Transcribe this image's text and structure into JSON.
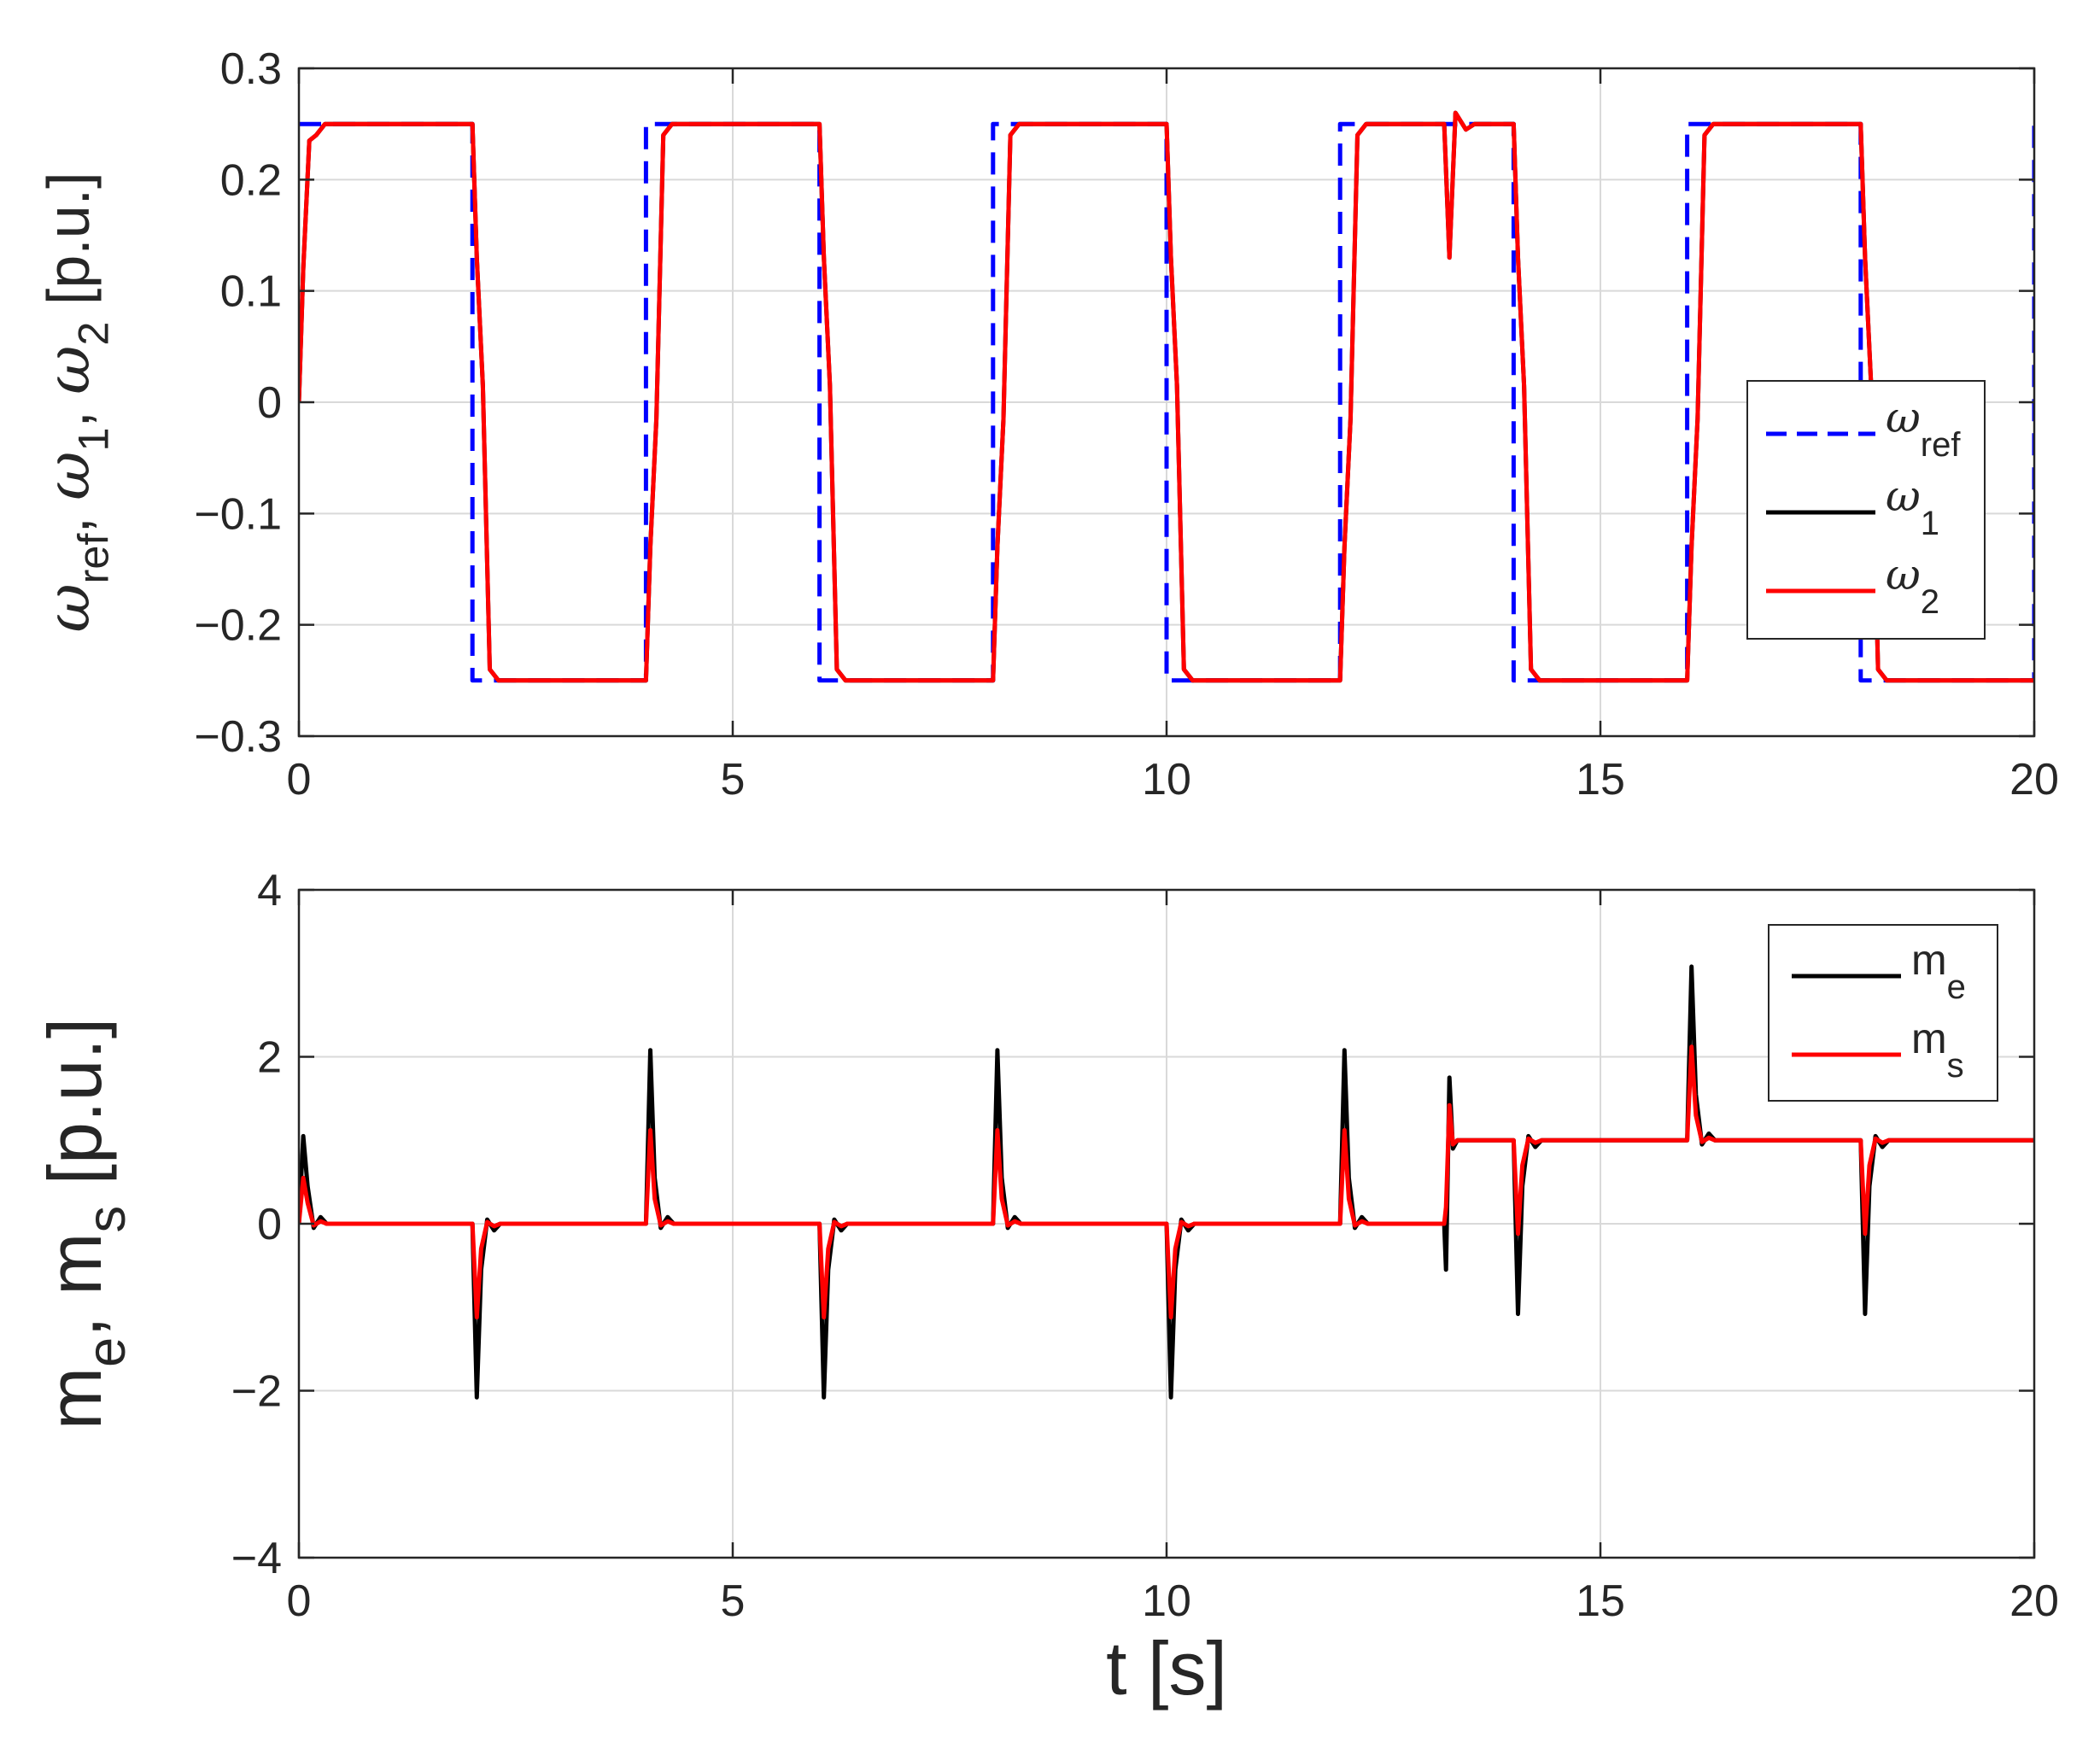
{
  "chart_data": [
    {
      "type": "line",
      "title": "",
      "xlabel": "",
      "ylabel": {
        "parts": [
          {
            "text": "ω",
            "sub": "ref"
          },
          {
            "text": ", "
          },
          {
            "text": "ω",
            "sub": "1"
          },
          {
            "text": ", "
          },
          {
            "text": "ω",
            "sub": "2"
          },
          {
            "text": " [p.u.]"
          }
        ]
      },
      "xlim": [
        0,
        20
      ],
      "ylim": [
        -0.3,
        0.3
      ],
      "xticks": [
        0,
        5,
        10,
        15,
        20
      ],
      "xtick_labels": [
        "0",
        "5",
        "10",
        "15",
        "20"
      ],
      "yticks": [
        -0.3,
        -0.2,
        -0.1,
        0,
        0.1,
        0.2,
        0.3
      ],
      "ytick_labels": [
        "−0.3",
        "−0.2",
        "−0.1",
        "0",
        "0.1",
        "0.2",
        "0.3"
      ],
      "grid": true,
      "legend_position": "right",
      "legend": [
        {
          "name": "ω",
          "sub": "ref",
          "color": "#0000ff",
          "style": "dashed"
        },
        {
          "name": "ω",
          "sub": "1",
          "color": "#000000",
          "style": "solid"
        },
        {
          "name": "ω",
          "sub": "2",
          "color": "#ff0000",
          "style": "solid"
        }
      ],
      "series": [
        {
          "name": "omega_ref",
          "color": "#0000ff",
          "style": "dashed",
          "x": [
            0,
            0.0,
            2.0,
            2.0,
            4.0,
            4.0,
            6.0,
            6.0,
            8.0,
            8.0,
            10.0,
            10.0,
            12.0,
            12.0,
            14.0,
            14.0,
            16.0,
            16.0,
            18.0,
            18.0,
            20.0,
            20.0
          ],
          "y": [
            0.25,
            0.25,
            0.25,
            -0.25,
            -0.25,
            0.25,
            0.25,
            -0.25,
            -0.25,
            0.25,
            0.25,
            -0.25,
            -0.25,
            0.25,
            0.25,
            -0.25,
            -0.25,
            0.25,
            0.25,
            -0.25,
            -0.25,
            0.25
          ]
        },
        {
          "name": "omega_1",
          "color": "#000000",
          "style": "solid",
          "x": [
            0,
            0.05,
            0.12,
            0.2,
            0.3,
            2.0,
            2.05,
            2.12,
            2.2,
            2.3,
            4.0,
            4.05,
            4.12,
            4.2,
            4.3,
            6.0,
            6.05,
            6.12,
            6.2,
            6.3,
            8.0,
            8.05,
            8.12,
            8.2,
            8.3,
            10.0,
            10.05,
            10.12,
            10.2,
            10.3,
            12.0,
            12.05,
            12.12,
            12.2,
            12.3,
            13.2,
            13.26,
            13.33,
            13.45,
            13.55,
            13.7,
            14.0,
            14.05,
            14.12,
            14.2,
            14.3,
            16.0,
            16.05,
            16.12,
            16.2,
            16.3,
            18.0,
            18.05,
            18.12,
            18.2,
            18.3,
            20.0
          ],
          "y": [
            0.0,
            0.12,
            0.235,
            0.24,
            0.25,
            0.25,
            0.13,
            0.015,
            -0.24,
            -0.25,
            -0.25,
            -0.13,
            -0.015,
            0.24,
            0.25,
            0.25,
            0.13,
            0.015,
            -0.24,
            -0.25,
            -0.25,
            -0.13,
            -0.015,
            0.24,
            0.25,
            0.25,
            0.13,
            0.015,
            -0.24,
            -0.25,
            -0.25,
            -0.13,
            -0.015,
            0.24,
            0.25,
            0.25,
            0.13,
            0.26,
            0.245,
            0.25,
            0.25,
            0.25,
            0.13,
            0.015,
            -0.24,
            -0.25,
            -0.25,
            -0.13,
            -0.015,
            0.24,
            0.25,
            0.25,
            0.13,
            0.015,
            -0.24,
            -0.25,
            -0.25
          ]
        },
        {
          "name": "omega_2",
          "color": "#ff0000",
          "style": "solid",
          "x": [
            0,
            0.05,
            0.12,
            0.2,
            0.3,
            2.0,
            2.05,
            2.12,
            2.2,
            2.3,
            4.0,
            4.05,
            4.12,
            4.2,
            4.3,
            6.0,
            6.05,
            6.12,
            6.2,
            6.3,
            8.0,
            8.05,
            8.12,
            8.2,
            8.3,
            10.0,
            10.05,
            10.12,
            10.2,
            10.3,
            12.0,
            12.05,
            12.12,
            12.2,
            12.3,
            13.2,
            13.26,
            13.33,
            13.45,
            13.55,
            13.7,
            14.0,
            14.05,
            14.12,
            14.2,
            14.3,
            16.0,
            16.05,
            16.12,
            16.2,
            16.3,
            18.0,
            18.05,
            18.12,
            18.2,
            18.3,
            20.0
          ],
          "y": [
            0.0,
            0.12,
            0.235,
            0.24,
            0.25,
            0.25,
            0.13,
            0.015,
            -0.24,
            -0.25,
            -0.25,
            -0.13,
            -0.015,
            0.24,
            0.25,
            0.25,
            0.13,
            0.015,
            -0.24,
            -0.25,
            -0.25,
            -0.13,
            -0.015,
            0.24,
            0.25,
            0.25,
            0.13,
            0.015,
            -0.24,
            -0.25,
            -0.25,
            -0.13,
            -0.015,
            0.24,
            0.25,
            0.25,
            0.13,
            0.26,
            0.245,
            0.25,
            0.25,
            0.25,
            0.13,
            0.015,
            -0.24,
            -0.25,
            -0.25,
            -0.13,
            -0.015,
            0.24,
            0.25,
            0.25,
            0.13,
            0.015,
            -0.24,
            -0.25,
            -0.25
          ]
        }
      ]
    },
    {
      "type": "line",
      "title": "",
      "xlabel": "t [s]",
      "ylabel": {
        "parts": [
          {
            "text": "m",
            "sub": "e"
          },
          {
            "text": ", "
          },
          {
            "text": "m",
            "sub": "s"
          },
          {
            "text": " [p.u.]"
          }
        ]
      },
      "xlim": [
        0,
        20
      ],
      "ylim": [
        -4,
        4
      ],
      "xticks": [
        0,
        5,
        10,
        15,
        20
      ],
      "xtick_labels": [
        "0",
        "5",
        "10",
        "15",
        "20"
      ],
      "yticks": [
        -4,
        -2,
        0,
        2,
        4
      ],
      "ytick_labels": [
        "−4",
        "−2",
        "0",
        "2",
        "4"
      ],
      "grid": true,
      "legend_position": "top-right",
      "legend": [
        {
          "name": "m",
          "sub": "e",
          "color": "#000000",
          "style": "solid"
        },
        {
          "name": "m",
          "sub": "s",
          "color": "#ff0000",
          "style": "solid"
        }
      ],
      "series": [
        {
          "name": "m_e",
          "color": "#000000",
          "style": "solid",
          "x": [
            0,
            0.05,
            0.1,
            0.17,
            0.25,
            0.32,
            0.4,
            2.0,
            2.05,
            2.1,
            2.17,
            2.25,
            2.32,
            2.4,
            4.0,
            4.05,
            4.1,
            4.17,
            4.25,
            4.32,
            4.4,
            6.0,
            6.05,
            6.1,
            6.17,
            6.25,
            6.32,
            6.4,
            8.0,
            8.05,
            8.1,
            8.17,
            8.25,
            8.32,
            8.4,
            10.0,
            10.05,
            10.1,
            10.17,
            10.25,
            10.32,
            10.4,
            12.0,
            12.05,
            12.1,
            12.17,
            12.25,
            12.32,
            12.4,
            13.2,
            13.22,
            13.26,
            13.3,
            13.35,
            13.45,
            13.6,
            14.0,
            14.05,
            14.1,
            14.17,
            14.25,
            14.32,
            14.4,
            16.0,
            16.05,
            16.1,
            16.17,
            16.25,
            16.32,
            16.4,
            18.0,
            18.05,
            18.1,
            18.17,
            18.25,
            18.32,
            18.4,
            20.0
          ],
          "y": [
            0,
            1.05,
            0.45,
            -0.05,
            0.08,
            0,
            0,
            0,
            -2.08,
            -0.55,
            0.05,
            -0.08,
            0,
            0,
            0,
            2.08,
            0.55,
            -0.05,
            0.08,
            0,
            0,
            0,
            -2.08,
            -0.55,
            0.05,
            -0.08,
            0,
            0,
            0,
            2.08,
            0.55,
            -0.05,
            0.08,
            0,
            0,
            0,
            -2.08,
            -0.55,
            0.05,
            -0.08,
            0,
            0,
            0,
            2.08,
            0.55,
            -0.05,
            0.08,
            0,
            0,
            0,
            -0.55,
            1.75,
            0.9,
            1.0,
            1.0,
            1.0,
            1.0,
            -1.08,
            0.45,
            1.05,
            0.92,
            1.0,
            1.0,
            1.0,
            3.08,
            1.55,
            0.95,
            1.08,
            1.0,
            1.0,
            1.0,
            -1.08,
            0.45,
            1.05,
            0.92,
            1.0,
            1.0,
            1.0
          ]
        },
        {
          "name": "m_s",
          "color": "#ff0000",
          "style": "solid",
          "x": [
            0,
            0.05,
            0.1,
            0.17,
            0.25,
            0.32,
            0.4,
            2.0,
            2.05,
            2.1,
            2.17,
            2.25,
            2.32,
            2.4,
            4.0,
            4.05,
            4.1,
            4.17,
            4.25,
            4.32,
            4.4,
            6.0,
            6.05,
            6.1,
            6.17,
            6.25,
            6.32,
            6.4,
            8.0,
            8.05,
            8.1,
            8.17,
            8.25,
            8.32,
            8.4,
            10.0,
            10.05,
            10.1,
            10.17,
            10.25,
            10.32,
            10.4,
            12.0,
            12.05,
            12.1,
            12.17,
            12.25,
            12.32,
            12.4,
            13.2,
            13.22,
            13.26,
            13.3,
            13.35,
            13.45,
            13.6,
            14.0,
            14.05,
            14.1,
            14.17,
            14.25,
            14.32,
            14.4,
            16.0,
            16.05,
            16.1,
            16.17,
            16.25,
            16.32,
            16.4,
            18.0,
            18.05,
            18.1,
            18.17,
            18.25,
            18.32,
            18.4,
            20.0
          ],
          "y": [
            0,
            0.55,
            0.25,
            -0.02,
            0.03,
            0,
            0,
            0,
            -1.12,
            -0.3,
            0.02,
            -0.03,
            0,
            0,
            0,
            1.12,
            0.3,
            -0.02,
            0.03,
            0,
            0,
            0,
            -1.12,
            -0.3,
            0.02,
            -0.03,
            0,
            0,
            0,
            1.12,
            0.3,
            -0.02,
            0.03,
            0,
            0,
            0,
            -1.12,
            -0.3,
            0.02,
            -0.03,
            0,
            0,
            0,
            1.12,
            0.3,
            -0.02,
            0.03,
            0,
            0,
            0,
            0.2,
            1.42,
            0.95,
            1.0,
            1.0,
            1.0,
            1.0,
            -0.12,
            0.7,
            1.02,
            0.97,
            1.0,
            1.0,
            1.0,
            2.12,
            1.3,
            0.98,
            1.03,
            1.0,
            1.0,
            1.0,
            -0.12,
            0.7,
            1.02,
            0.97,
            1.0,
            1.0,
            1.0
          ]
        }
      ]
    }
  ]
}
